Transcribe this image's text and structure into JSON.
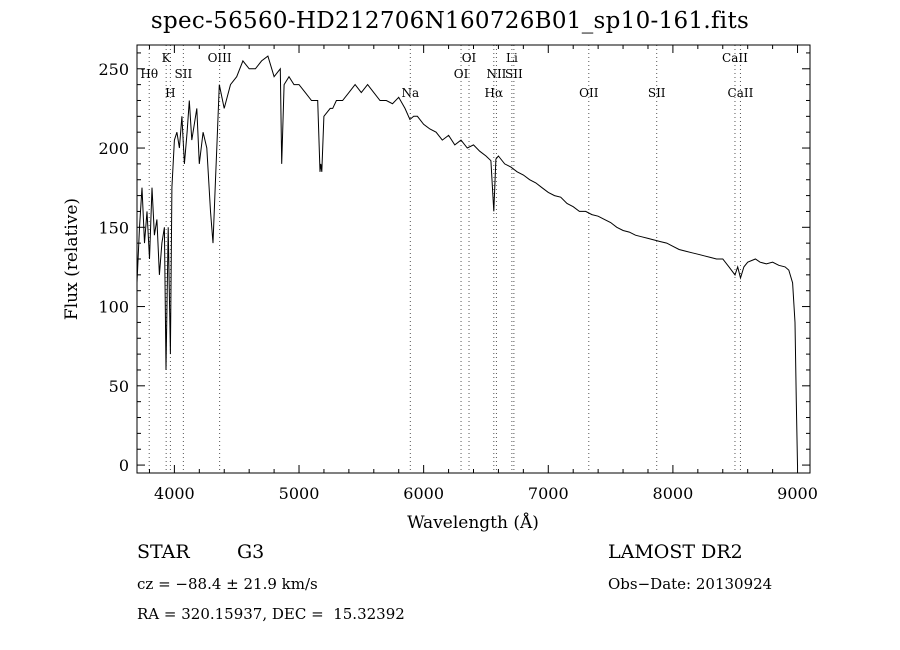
{
  "header": {
    "title": "spec-56560-HD212706N160726B01_sp10-161.fits"
  },
  "chart_data": {
    "type": "line",
    "xlabel": "Wavelength (Å)",
    "ylabel": "Flux (relative)",
    "xlim": [
      3700,
      9100
    ],
    "ylim": [
      -5,
      265
    ],
    "xticks": [
      4000,
      5000,
      6000,
      7000,
      8000,
      9000
    ],
    "yticks": [
      0,
      50,
      100,
      150,
      200,
      250
    ],
    "grid": false,
    "series": [
      {
        "x": [
          3700,
          3720,
          3740,
          3760,
          3780,
          3800,
          3820,
          3840,
          3860,
          3880,
          3900,
          3920,
          3933,
          3950,
          3968,
          3980,
          4000,
          4020,
          4040,
          4060,
          4080,
          4102,
          4120,
          4140,
          4160,
          4180,
          4200,
          4230,
          4260,
          4290,
          4310,
          4330,
          4340,
          4360,
          4400,
          4450,
          4500,
          4550,
          4600,
          4650,
          4700,
          4750,
          4800,
          4850,
          4861,
          4880,
          4920,
          4960,
          5000,
          5050,
          5100,
          5150,
          5168,
          5175,
          5183,
          5200,
          5250,
          5270,
          5300,
          5350,
          5400,
          5450,
          5500,
          5550,
          5600,
          5650,
          5700,
          5750,
          5800,
          5850,
          5890,
          5920,
          5950,
          6000,
          6050,
          6100,
          6150,
          6200,
          6250,
          6300,
          6350,
          6400,
          6450,
          6500,
          6540,
          6563,
          6580,
          6600,
          6650,
          6700,
          6750,
          6800,
          6850,
          6900,
          6950,
          7000,
          7050,
          7100,
          7150,
          7200,
          7250,
          7300,
          7350,
          7400,
          7450,
          7500,
          7550,
          7600,
          7650,
          7700,
          7750,
          7800,
          7850,
          7900,
          7950,
          8000,
          8050,
          8100,
          8150,
          8200,
          8250,
          8300,
          8350,
          8400,
          8450,
          8498,
          8520,
          8542,
          8570,
          8600,
          8662,
          8700,
          8750,
          8800,
          8850,
          8900,
          8930,
          8960,
          8980,
          8990,
          9000
        ],
        "y": [
          115,
          150,
          175,
          140,
          160,
          130,
          175,
          145,
          155,
          120,
          140,
          150,
          60,
          150,
          70,
          175,
          205,
          210,
          200,
          220,
          190,
          210,
          230,
          205,
          215,
          225,
          190,
          210,
          200,
          160,
          140,
          180,
          200,
          240,
          225,
          240,
          245,
          255,
          250,
          250,
          255,
          258,
          245,
          250,
          190,
          240,
          245,
          240,
          240,
          235,
          230,
          230,
          185,
          190,
          185,
          220,
          225,
          225,
          230,
          230,
          235,
          240,
          235,
          240,
          235,
          230,
          230,
          228,
          232,
          225,
          218,
          220,
          220,
          215,
          212,
          210,
          205,
          208,
          202,
          205,
          200,
          202,
          198,
          195,
          192,
          160,
          193,
          195,
          190,
          188,
          185,
          183,
          180,
          178,
          175,
          172,
          170,
          169,
          165,
          163,
          160,
          160,
          158,
          157,
          155,
          153,
          150,
          148,
          147,
          145,
          144,
          143,
          142,
          141,
          140,
          138,
          136,
          135,
          134,
          133,
          132,
          131,
          130,
          130,
          125,
          120,
          125,
          118,
          125,
          128,
          130,
          128,
          127,
          128,
          126,
          125,
          123,
          115,
          90,
          40,
          0
        ]
      }
    ],
    "line_labels": [
      {
        "label": "Hθ",
        "wavelength": 3798,
        "row": 1
      },
      {
        "label": "K",
        "wavelength": 3934,
        "row": 0
      },
      {
        "label": "H",
        "wavelength": 3968,
        "row": 2
      },
      {
        "label": "SII",
        "wavelength": 4072,
        "row": 1
      },
      {
        "label": "OIII",
        "wavelength": 4363,
        "row": 0
      },
      {
        "label": "Na",
        "wavelength": 5893,
        "row": 2
      },
      {
        "label": "OI",
        "wavelength": 6300,
        "row": 1
      },
      {
        "label": "OI",
        "wavelength": 6364,
        "row": 0
      },
      {
        "label": "Hα",
        "wavelength": 6563,
        "row": 2
      },
      {
        "label": "NII",
        "wavelength": 6584,
        "row": 1
      },
      {
        "label": "Li",
        "wavelength": 6708,
        "row": 0
      },
      {
        "label": "SII",
        "wavelength": 6724,
        "row": 1
      },
      {
        "label": "OII",
        "wavelength": 7325,
        "row": 2
      },
      {
        "label": "SII",
        "wavelength": 7870,
        "row": 2
      },
      {
        "label": "CaII",
        "wavelength": 8498,
        "row": 0
      },
      {
        "label": "CaII",
        "wavelength": 8542,
        "row": 2
      }
    ],
    "marker_lines": [
      3798,
      3934,
      3968,
      4072,
      4363,
      5893,
      6300,
      6364,
      6563,
      6584,
      6708,
      6724,
      7325,
      7870,
      8498,
      8542
    ]
  },
  "info": {
    "object_class": "STAR",
    "subclass": "G3",
    "survey": "LAMOST DR2",
    "cz": "cz = −88.4 ± 21.9 km/s",
    "obs_date": "Obs−Date: 20130924",
    "coords": "RA = 320.15937, DEC =  15.32392"
  }
}
